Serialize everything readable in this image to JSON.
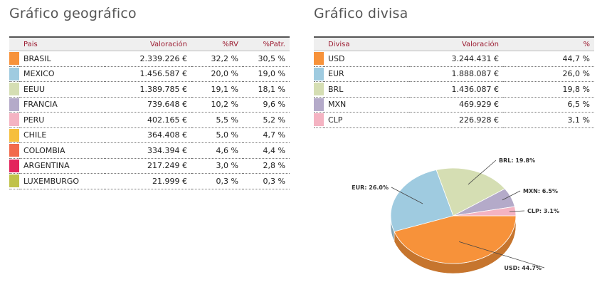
{
  "geo": {
    "title": "Gráfico geográfico",
    "headers": [
      "Pais",
      "Valoración",
      "%RV",
      "%Patr."
    ],
    "rows": [
      {
        "color": "#f7923a",
        "name": "BRASIL",
        "value": "2.339.226 €",
        "rv": "32,2 %",
        "patr": "30,5 %"
      },
      {
        "color": "#9fcbe0",
        "name": "MEXICO",
        "value": "1.456.587 €",
        "rv": "20,0 %",
        "patr": "19,0 %"
      },
      {
        "color": "#d5deb3",
        "name": "EEUU",
        "value": "1.389.785 €",
        "rv": "19,1 %",
        "patr": "18,1 %"
      },
      {
        "color": "#b4aac9",
        "name": "FRANCIA",
        "value": "739.648 €",
        "rv": "10,2 %",
        "patr": "9,6 %"
      },
      {
        "color": "#f4b3c2",
        "name": "PERU",
        "value": "402.165 €",
        "rv": "5,5 %",
        "patr": "5,2 %"
      },
      {
        "color": "#f6bf3c",
        "name": "CHILE",
        "value": "364.408 €",
        "rv": "5,0 %",
        "patr": "4,7 %"
      },
      {
        "color": "#f26a4c",
        "name": "COLOMBIA",
        "value": "334.394 €",
        "rv": "4,6 %",
        "patr": "4,4 %"
      },
      {
        "color": "#e3245c",
        "name": "ARGENTINA",
        "value": "217.249 €",
        "rv": "3,0 %",
        "patr": "2,8 %"
      },
      {
        "color": "#c0c24a",
        "name": "LUXEMBURGO",
        "value": "21.999 €",
        "rv": "0,3 %",
        "patr": "0,3 %"
      }
    ]
  },
  "currency": {
    "title": "Gráfico divisa",
    "headers": [
      "Divisa",
      "Valoración",
      "%"
    ],
    "rows": [
      {
        "color": "#f7923a",
        "name": "USD",
        "value": "3.244.431 €",
        "pct": "44,7 %"
      },
      {
        "color": "#9fcbe0",
        "name": "EUR",
        "value": "1.888.087 €",
        "pct": "26,0 %"
      },
      {
        "color": "#d5deb3",
        "name": "BRL",
        "value": "1.436.087 €",
        "pct": "19,8 %"
      },
      {
        "color": "#b4aac9",
        "name": "MXN",
        "value": "469.929 €",
        "pct": "6,5 %"
      },
      {
        "color": "#f4b3c2",
        "name": "CLP",
        "value": "226.928 €",
        "pct": "3,1 %"
      }
    ]
  },
  "chart_data": {
    "type": "pie",
    "style": "3d",
    "slices": [
      {
        "label": "USD",
        "value": 44.7,
        "text": "USD: 44.7%",
        "color": "#f7923a"
      },
      {
        "label": "EUR",
        "value": 26.0,
        "text": "EUR: 26.0%",
        "color": "#9fcbe0"
      },
      {
        "label": "BRL",
        "value": 19.8,
        "text": "BRL: 19.8%",
        "color": "#d5deb3"
      },
      {
        "label": "MXN",
        "value": 6.5,
        "text": "MXN: 6.5%",
        "color": "#b4aac9"
      },
      {
        "label": "CLP",
        "value": 3.1,
        "text": "CLP: 3.1%",
        "color": "#f4b3c2"
      }
    ]
  }
}
